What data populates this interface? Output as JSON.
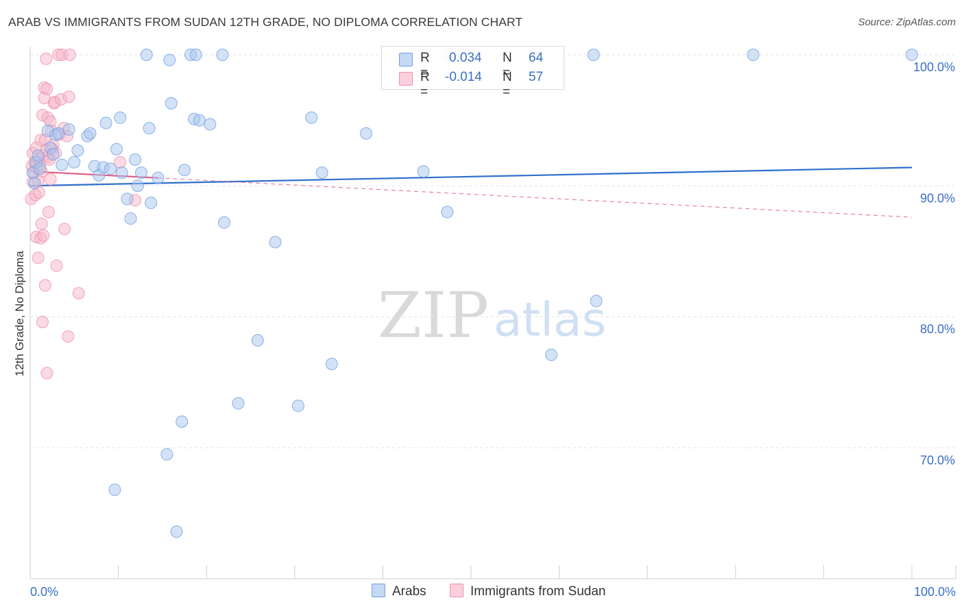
{
  "title": "ARAB VS IMMIGRANTS FROM SUDAN 12TH GRADE, NO DIPLOMA CORRELATION CHART",
  "source": "Source: ZipAtlas.com",
  "watermark": {
    "zip": "ZIP",
    "atlas": "atlas"
  },
  "legend_top": {
    "rows": [
      {
        "r_label": "R =",
        "r_value": "0.034",
        "n_label": "N =",
        "n_value": "64",
        "color": "#a8c6ef"
      },
      {
        "r_label": "R =",
        "r_value": "-0.014",
        "n_label": "N =",
        "n_value": "57",
        "color": "#f6b6c8"
      }
    ]
  },
  "legend_bottom": [
    {
      "label": "Arabs",
      "color": "#a8c6ef"
    },
    {
      "label": "Immigrants from Sudan",
      "color": "#f6b6c8"
    }
  ],
  "chart_data": {
    "type": "scatter",
    "title": "ARAB VS IMMIGRANTS FROM SUDAN 12TH GRADE, NO DIPLOMA CORRELATION CHART",
    "xlabel": "",
    "ylabel": "12th Grade, No Diploma",
    "xlim": [
      0,
      100
    ],
    "ylim": [
      60,
      100
    ],
    "x_tick_labels": [
      "0.0%",
      "100.0%"
    ],
    "y_ticks": [
      70,
      80,
      90,
      100
    ],
    "y_tick_labels": [
      "70.0%",
      "80.0%",
      "90.0%",
      "100.0%"
    ],
    "grid": true,
    "series": [
      {
        "name": "Arabs",
        "color": "#6f9fe0",
        "fill": "#a8c6ef",
        "trend": {
          "x": [
            0,
            100
          ],
          "y": [
            90.0,
            91.4
          ],
          "style": "solid",
          "color": "#2f6fcc"
        },
        "points": [
          [
            0.3,
            91.0
          ],
          [
            0.5,
            90.2
          ],
          [
            0.7,
            91.8
          ],
          [
            0.9,
            92.3
          ],
          [
            1.1,
            91.3
          ],
          [
            2.0,
            94.2
          ],
          [
            2.3,
            92.9
          ],
          [
            2.6,
            92.4
          ],
          [
            2.9,
            93.9
          ],
          [
            3.2,
            94.0
          ],
          [
            3.6,
            91.6
          ],
          [
            4.4,
            94.3
          ],
          [
            5.0,
            91.8
          ],
          [
            5.4,
            92.7
          ],
          [
            6.5,
            93.8
          ],
          [
            6.8,
            94.0
          ],
          [
            7.3,
            91.5
          ],
          [
            7.8,
            90.8
          ],
          [
            8.3,
            91.4
          ],
          [
            8.6,
            94.8
          ],
          [
            9.1,
            91.3
          ],
          [
            9.6,
            66.8
          ],
          [
            9.8,
            92.8
          ],
          [
            10.2,
            95.2
          ],
          [
            10.4,
            91.0
          ],
          [
            11.0,
            89.0
          ],
          [
            11.4,
            87.5
          ],
          [
            11.9,
            92.0
          ],
          [
            12.2,
            90.0
          ],
          [
            12.6,
            91.0
          ],
          [
            13.2,
            100.0
          ],
          [
            13.5,
            94.4
          ],
          [
            13.7,
            88.7
          ],
          [
            14.5,
            90.6
          ],
          [
            15.5,
            69.5
          ],
          [
            15.8,
            99.6
          ],
          [
            16.0,
            96.3
          ],
          [
            16.6,
            63.6
          ],
          [
            17.2,
            72.0
          ],
          [
            17.5,
            91.2
          ],
          [
            18.2,
            100.0
          ],
          [
            18.6,
            95.1
          ],
          [
            18.8,
            100.0
          ],
          [
            19.2,
            95.0
          ],
          [
            20.4,
            94.7
          ],
          [
            21.8,
            100.0
          ],
          [
            22.0,
            87.2
          ],
          [
            23.6,
            73.4
          ],
          [
            25.8,
            78.2
          ],
          [
            27.8,
            85.7
          ],
          [
            30.4,
            73.2
          ],
          [
            31.9,
            95.2
          ],
          [
            33.1,
            91.0
          ],
          [
            34.2,
            76.4
          ],
          [
            38.1,
            94.0
          ],
          [
            44.6,
            91.1
          ],
          [
            44.7,
            100.0
          ],
          [
            47.3,
            88.0
          ],
          [
            47.5,
            100.0
          ],
          [
            59.1,
            77.1
          ],
          [
            63.9,
            100.0
          ],
          [
            64.2,
            81.2
          ],
          [
            82.0,
            100.0
          ],
          [
            100.0,
            100.0
          ]
        ]
      },
      {
        "name": "Immigrants from Sudan",
        "color": "#ee8fab",
        "fill": "#f6b6c8",
        "trend": {
          "x": [
            0,
            14.5
          ],
          "y": [
            91.1,
            90.6
          ],
          "style": "solid",
          "color": "#e0608a",
          "extended": {
            "x": [
              14.5,
              100
            ],
            "y": [
              90.6,
              87.6
            ],
            "style": "dashed"
          }
        },
        "points": [
          [
            0.1,
            89.0
          ],
          [
            0.2,
            91.5
          ],
          [
            0.3,
            90.3
          ],
          [
            0.3,
            92.5
          ],
          [
            0.4,
            91.0
          ],
          [
            0.5,
            91.8
          ],
          [
            0.6,
            89.3
          ],
          [
            0.7,
            92.9
          ],
          [
            0.7,
            86.1
          ],
          [
            0.8,
            91.3
          ],
          [
            0.9,
            90.4
          ],
          [
            0.9,
            84.5
          ],
          [
            1.0,
            92.0
          ],
          [
            1.0,
            89.5
          ],
          [
            1.1,
            91.6
          ],
          [
            1.2,
            93.5
          ],
          [
            1.2,
            86.0
          ],
          [
            1.3,
            91.1
          ],
          [
            1.3,
            87.1
          ],
          [
            1.4,
            95.4
          ],
          [
            1.4,
            79.6
          ],
          [
            1.5,
            92.3
          ],
          [
            1.5,
            86.2
          ],
          [
            1.6,
            97.5
          ],
          [
            1.6,
            96.7
          ],
          [
            1.7,
            93.5
          ],
          [
            1.7,
            82.4
          ],
          [
            1.8,
            99.7
          ],
          [
            1.8,
            92.7
          ],
          [
            1.9,
            97.4
          ],
          [
            1.9,
            75.7
          ],
          [
            2.0,
            95.2
          ],
          [
            2.0,
            92.2
          ],
          [
            2.1,
            88.0
          ],
          [
            2.2,
            92.0
          ],
          [
            2.3,
            94.9
          ],
          [
            2.3,
            90.5
          ],
          [
            2.4,
            94.2
          ],
          [
            2.5,
            92.8
          ],
          [
            2.6,
            93.1
          ],
          [
            2.7,
            96.3
          ],
          [
            2.8,
            96.4
          ],
          [
            2.9,
            92.5
          ],
          [
            3.0,
            83.9
          ],
          [
            3.2,
            100.0
          ],
          [
            3.3,
            93.9
          ],
          [
            3.5,
            96.6
          ],
          [
            3.6,
            100.0
          ],
          [
            3.8,
            94.4
          ],
          [
            3.9,
            86.7
          ],
          [
            4.2,
            93.8
          ],
          [
            4.3,
            78.5
          ],
          [
            4.4,
            96.8
          ],
          [
            4.5,
            100.0
          ],
          [
            5.5,
            81.8
          ],
          [
            10.2,
            91.8
          ],
          [
            11.9,
            88.9
          ]
        ]
      }
    ]
  }
}
